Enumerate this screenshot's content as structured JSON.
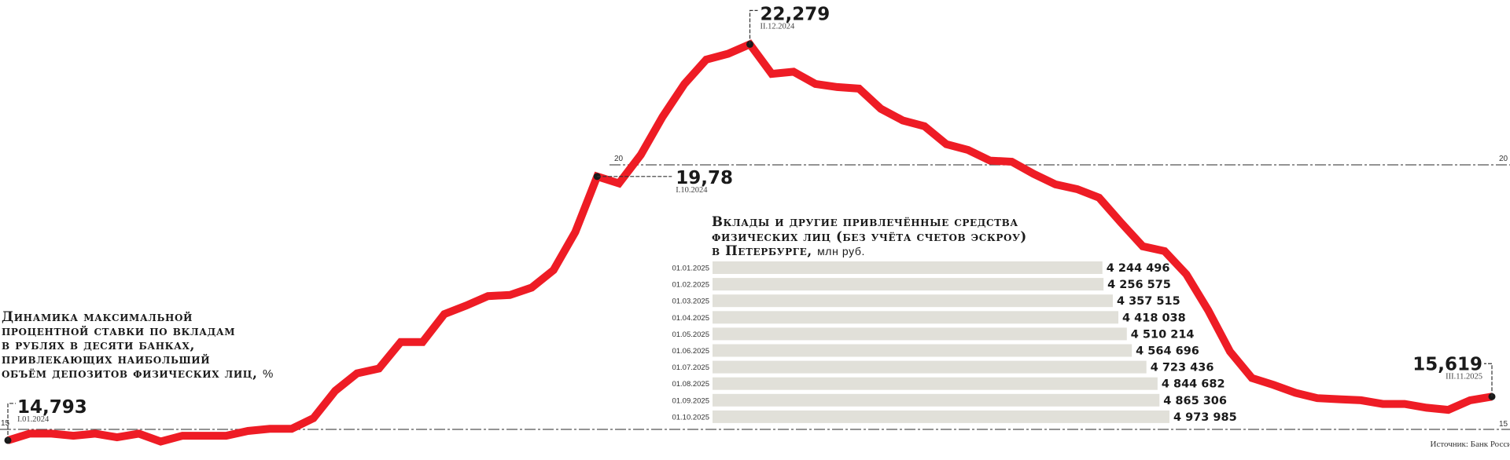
{
  "line_chart_title": "Динамика максимальной процентной ставки по вкладам в рублях в десяти банках, привлекающих наибольший объём депозитов физических лиц,",
  "line_chart_title_lines": [
    "Динамика максимальной",
    "процентной ставки по вкладам",
    "в рублях в десяти банках,",
    "привлекающих наибольший",
    "объём депозитов физических лиц,"
  ],
  "line_chart_unit": "%",
  "bar_chart_title_lines": [
    "Вклады и другие привлечённые средства",
    "физических лиц (без учёта счетов эскроу)",
    "в Петербурге,"
  ],
  "bar_chart_unit": "млн руб.",
  "source": "Источник: Банк России",
  "colors": {
    "line": "#ee1c25",
    "bar": "#e1e0d9",
    "text": "#1a1a1a",
    "grid": "#555555"
  },
  "chart_data": [
    {
      "type": "line",
      "ylim": [
        14.5,
        22.6
      ],
      "gridlines": [
        15,
        20
      ],
      "tick_labels": [
        "15",
        "20"
      ],
      "x_start": "I.01.2024",
      "x_end": "III.11.2025",
      "x_period": "dekad",
      "values": [
        14.793,
        14.92,
        14.92,
        14.88,
        14.92,
        14.85,
        14.92,
        14.77,
        14.88,
        14.88,
        14.88,
        14.97,
        15.01,
        15.01,
        15.21,
        15.73,
        16.06,
        16.15,
        16.65,
        16.65,
        17.18,
        17.34,
        17.52,
        17.54,
        17.68,
        18.01,
        18.73,
        19.78,
        19.65,
        20.19,
        20.91,
        21.53,
        21.99,
        22.1,
        22.279,
        21.72,
        21.76,
        21.53,
        21.47,
        21.44,
        21.06,
        20.84,
        20.73,
        20.39,
        20.28,
        20.08,
        20.06,
        19.83,
        19.63,
        19.54,
        19.38,
        18.91,
        18.46,
        18.37,
        17.93,
        17.25,
        16.47,
        15.97,
        15.84,
        15.69,
        15.59,
        15.57,
        15.55,
        15.48,
        15.48,
        15.41,
        15.37,
        15.55,
        15.619
      ],
      "annotations": [
        {
          "index": 0,
          "value_label": "14,793",
          "date_label": "I.01.2024"
        },
        {
          "index": 27,
          "value_label": "19,78",
          "date_label": "I.10.2024"
        },
        {
          "index": 34,
          "value_label": "22,279",
          "date_label": "II.12.2024"
        },
        {
          "index": 68,
          "value_label": "15,619",
          "date_label": "III.11.2025"
        }
      ]
    },
    {
      "type": "bar",
      "orientation": "horizontal",
      "categories": [
        "01.01.2025",
        "01.02.2025",
        "01.03.2025",
        "01.04.2025",
        "01.05.2025",
        "01.06.2025",
        "01.07.2025",
        "01.08.2025",
        "01.09.2025",
        "01.10.2025"
      ],
      "values": [
        4244496,
        4256575,
        4357515,
        4418038,
        4510214,
        4564696,
        4723436,
        4844682,
        4865306,
        4973985
      ],
      "value_labels": [
        "4 244 496",
        "4 256 575",
        "4 357 515",
        "4 418 038",
        "4 510 214",
        "4 564 696",
        "4 723 436",
        "4 844 682",
        "4 865 306",
        "4 973 985"
      ]
    }
  ]
}
